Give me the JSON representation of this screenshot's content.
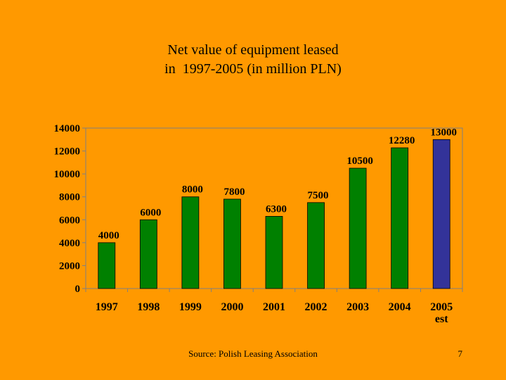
{
  "slide": {
    "title_line1": "Net value of equipment leased",
    "title_line2": "in  1997-2005 (in million PLN)",
    "source": "Source: Polish Leasing Association",
    "page_number": "7"
  },
  "colors": {
    "background": "#FF9900",
    "plot_area": "#FF9900",
    "bar_green": "#008000",
    "bar_estimate": "#333399",
    "axis": "#808080"
  },
  "chart_data": {
    "type": "bar",
    "title": "Net value of equipment leased in 1997-2005 (in million PLN)",
    "xlabel": "",
    "ylabel": "",
    "ylim": [
      0,
      14000
    ],
    "yticks": [
      "0",
      "2000",
      "4000",
      "6000",
      "8000",
      "10000",
      "12000",
      "14000"
    ],
    "categories": [
      [
        "1997"
      ],
      [
        "1998"
      ],
      [
        "1999"
      ],
      [
        "2000"
      ],
      [
        "2001"
      ],
      [
        "2002"
      ],
      [
        "2003"
      ],
      [
        "2004"
      ],
      [
        "2005",
        "est"
      ]
    ],
    "values": [
      4000,
      6000,
      8000,
      7800,
      6300,
      7500,
      10500,
      12280,
      13000
    ],
    "data_labels": [
      "4000",
      "6000",
      "8000",
      "7800",
      "6300",
      "7500",
      "10500",
      "12280",
      "13000"
    ],
    "estimate_flags": [
      false,
      false,
      false,
      false,
      false,
      false,
      false,
      false,
      true
    ],
    "grid": false,
    "legend": "none"
  }
}
